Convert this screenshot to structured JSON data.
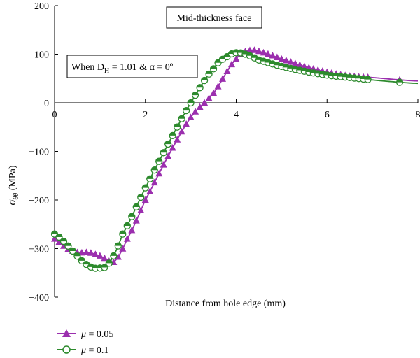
{
  "chart_data": {
    "type": "line",
    "xlabel": "Distance from hole edge (mm)",
    "ylabel": "σθθ (MPa)",
    "ylabel_main": "σ",
    "ylabel_sub": "θθ",
    "ylabel_unit": " (MPa)",
    "xlim": [
      0,
      8
    ],
    "ylim": [
      -400,
      200
    ],
    "x_ticks": [
      0,
      2,
      4,
      6,
      8
    ],
    "y_ticks": [
      200,
      100,
      0,
      -100,
      -200,
      -300,
      -400
    ],
    "grid": false,
    "legend_position": "bottom-left",
    "annotations": [
      {
        "id": "face",
        "text": "Mid-thickness face"
      },
      {
        "id": "condition",
        "text_prefix": "When D",
        "text_sub": "H",
        "text_suffix": " = 1.01 & α = 0º"
      }
    ],
    "series": [
      {
        "name": "μ = 0.05",
        "legend_mu": "μ",
        "legend_value": " = 0.05",
        "marker": "triangle",
        "color": "#9b2fae",
        "x": [
          0,
          0.25,
          0.5,
          0.75,
          1.0,
          1.15,
          1.3,
          1.6,
          2.0,
          2.5,
          3.0,
          3.5,
          4.0,
          4.3,
          4.6,
          5.0,
          5.5,
          6.0,
          6.5,
          7.0,
          7.5,
          8.0
        ],
        "y": [
          -280,
          -298,
          -308,
          -308,
          -315,
          -322,
          -328,
          -280,
          -200,
          -110,
          -30,
          20,
          90,
          108,
          103,
          90,
          75,
          63,
          55,
          52,
          48,
          45
        ]
      },
      {
        "name": "μ = 0.1",
        "legend_mu": "μ",
        "legend_value": " = 0.1",
        "marker": "circle",
        "color": "#2d8a2d",
        "x": [
          0,
          0.2,
          0.4,
          0.6,
          0.8,
          1.0,
          1.2,
          1.5,
          2.0,
          2.5,
          3.0,
          3.5,
          3.8,
          4.0,
          4.2,
          4.5,
          5.0,
          5.5,
          6.0,
          6.5,
          7.0,
          7.5,
          8.0
        ],
        "y": [
          -270,
          -285,
          -305,
          -325,
          -338,
          -340,
          -330,
          -270,
          -175,
          -85,
          0,
          70,
          95,
          103,
          100,
          88,
          75,
          65,
          57,
          52,
          47,
          43,
          40
        ]
      }
    ]
  }
}
